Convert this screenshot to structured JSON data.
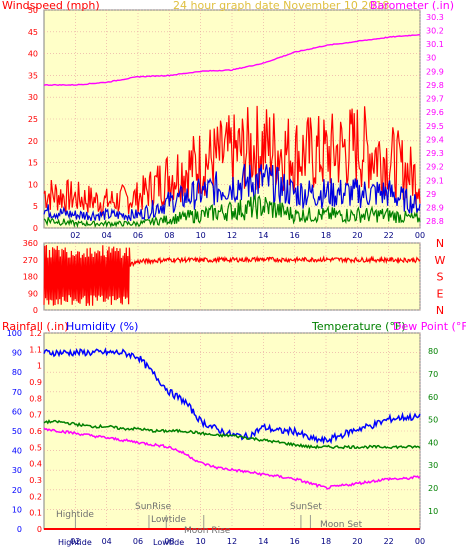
{
  "colors": {
    "plot_bg": "#ffffc8",
    "grid": "#e8a0a0",
    "red": "#ff0000",
    "blue": "#0000ff",
    "green": "#008000",
    "magenta": "#ff00ff",
    "navy": "#000080",
    "wind_avg": "#0000e0"
  },
  "chart_data": [
    {
      "type": "line",
      "title": "24 hour graph date   November 10 2018",
      "y_left_label": "Windspeed (mph)",
      "y_right_label": "Barometer (.in)",
      "x_ticks": [
        "02",
        "04",
        "06",
        "08",
        "10",
        "12",
        "14",
        "16",
        "18",
        "20",
        "22",
        "00"
      ],
      "y_left_ticks": [
        "0",
        "5",
        "10",
        "15",
        "20",
        "25",
        "30",
        "35",
        "40",
        "45",
        "50"
      ],
      "y_right_ticks": [
        "28.8",
        "28.9",
        "29",
        "29.1",
        "29.2",
        "29.3",
        "29.4",
        "29.5",
        "29.6",
        "29.7",
        "29.8",
        "29.9",
        "30",
        "30.1",
        "30.2",
        "30.3"
      ],
      "ylim_left": [
        0,
        50
      ],
      "ylim_right": [
        28.75,
        30.35
      ],
      "x_hours": [
        0,
        2,
        4,
        6,
        8,
        10,
        12,
        14,
        16,
        18,
        20,
        22,
        24
      ],
      "series": [
        {
          "name": "Windspeed gust",
          "axis": "left",
          "color": "red",
          "values": [
            8,
            7,
            6,
            7,
            12,
            15,
            17,
            19,
            17,
            17,
            19,
            16,
            11
          ]
        },
        {
          "name": "Windspeed average",
          "axis": "left",
          "color": "blue",
          "values": [
            4,
            3,
            3,
            3,
            6,
            8,
            10,
            11,
            8,
            8,
            8,
            8,
            5
          ]
        },
        {
          "name": "Windspeed low",
          "axis": "left",
          "color": "green",
          "values": [
            2,
            1,
            1,
            1,
            2,
            3,
            4,
            5,
            3,
            3,
            3,
            3,
            2
          ]
        },
        {
          "name": "Barometer",
          "axis": "right",
          "color": "magenta",
          "values": [
            29.8,
            29.8,
            29.82,
            29.86,
            29.87,
            29.9,
            29.91,
            29.96,
            30.04,
            30.09,
            30.12,
            30.15,
            30.17
          ]
        }
      ]
    },
    {
      "type": "line",
      "y_ticks": [
        "0",
        "90",
        "180",
        "270",
        "360"
      ],
      "ylim": [
        0,
        360
      ],
      "right_labels": [
        "N",
        "W",
        "S",
        "E",
        "N"
      ],
      "x_hours": [
        0,
        2,
        4,
        6,
        8,
        10,
        12,
        14,
        16,
        18,
        20,
        22,
        24
      ],
      "series": [
        {
          "name": "Wind direction",
          "color": "red",
          "values": [
            180,
            150,
            200,
            260,
            270,
            268,
            270,
            272,
            270,
            272,
            270,
            270,
            268
          ]
        }
      ]
    },
    {
      "type": "line",
      "y_label_1": "Rainfall (.in)",
      "y_label_2": "Humidity (%)",
      "y_label_3": "Temperature (°F)",
      "y_label_4": "Dew Point (°F)",
      "rain_ticks": [
        "0",
        "0.1",
        "0.2",
        "0.3",
        "0.4",
        "0.5",
        "0.6",
        "0.7",
        "0.8",
        "0.9",
        "1",
        "1.1",
        "1.2"
      ],
      "humidity_ticks": [
        "0",
        "10",
        "20",
        "30",
        "40",
        "50",
        "60",
        "70",
        "80",
        "90",
        "100"
      ],
      "temp_ticks": [
        "10",
        "20",
        "30",
        "40",
        "50",
        "60",
        "70",
        "80"
      ],
      "x_ticks": [
        "02",
        "04",
        "06",
        "08",
        "10",
        "12",
        "14",
        "16",
        "18",
        "20",
        "22",
        "00"
      ],
      "ylim_rain": [
        0,
        1.2
      ],
      "ylim_humidity": [
        0,
        100
      ],
      "ylim_temp": [
        2,
        88
      ],
      "x_hours": [
        0,
        1,
        2,
        3,
        4,
        5,
        6,
        7,
        8,
        9,
        10,
        11,
        12,
        13,
        14,
        15,
        16,
        17,
        18,
        19,
        20,
        21,
        22,
        23,
        24
      ],
      "series": [
        {
          "name": "Humidity",
          "axis": "humidity",
          "color": "blue",
          "values": [
            90,
            90,
            90,
            90,
            90,
            90,
            88,
            79,
            70,
            65,
            55,
            51,
            48,
            47,
            52,
            50,
            50,
            46,
            45,
            48,
            51,
            53,
            56,
            57,
            57
          ]
        },
        {
          "name": "Temperature",
          "axis": "temp",
          "color": "green",
          "values": [
            49,
            49,
            48,
            47,
            47,
            46,
            46,
            45,
            45,
            45,
            44,
            43,
            43,
            42,
            41,
            40,
            39,
            38,
            38,
            38,
            38,
            38,
            38,
            38,
            38
          ]
        },
        {
          "name": "Dew Point",
          "axis": "temp",
          "color": "magenta",
          "values": [
            46,
            45,
            44,
            43,
            42,
            41,
            40,
            39,
            38,
            35,
            31,
            29,
            28,
            27,
            26,
            25,
            24,
            22,
            20,
            21,
            22,
            23,
            24,
            24,
            25
          ]
        },
        {
          "name": "Rainfall",
          "axis": "rain",
          "color": "red",
          "values": [
            0,
            0,
            0,
            0,
            0,
            0,
            0,
            0,
            0,
            0,
            0,
            0,
            0,
            0,
            0,
            0,
            0,
            0,
            0,
            0,
            0,
            0,
            0,
            0,
            0
          ]
        }
      ],
      "annotations": {
        "hightide": "Hightide",
        "sunrise": "SunRise",
        "lowtide": "Lowtide",
        "moonrise": "Moon Rise",
        "sunset": "SunSet",
        "moonset": "Moon Set"
      },
      "bottom_labels": {
        "hightide": "Hightide",
        "lowtide": "Lowtide"
      }
    }
  ]
}
